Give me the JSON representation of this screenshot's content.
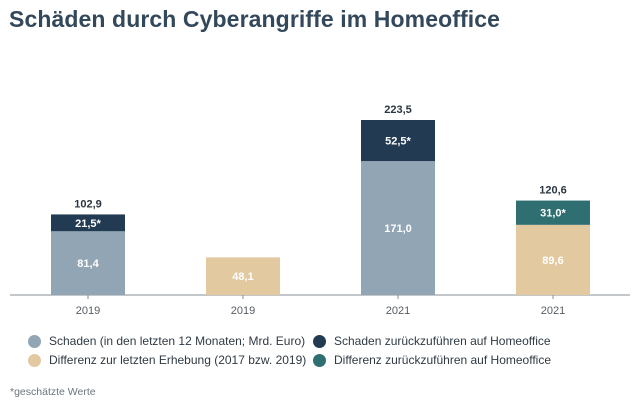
{
  "title": "Schäden durch Cyberangriffe im Homeoffice",
  "footnote": "*geschätzte Werte",
  "colors": {
    "schaden": "#91a5b5",
    "differenz": "#e2c99f",
    "schaden_homeoffice": "#223a52",
    "differenz_homeoffice": "#2f6f72",
    "axis": "#8a8f94",
    "text_dark": "#2b3640",
    "text_light": "#ffffff"
  },
  "chart_data": {
    "type": "bar",
    "stacked": true,
    "categories": [
      "2019",
      "2019",
      "2021",
      "2021"
    ],
    "series": [
      {
        "name": "Schaden (in den letzten 12 Monaten; Mrd. Euro)",
        "color_key": "schaden",
        "values": [
          81.4,
          null,
          171.0,
          null
        ],
        "labels": [
          "81,4",
          "",
          "171,0",
          ""
        ]
      },
      {
        "name": "Differenz zur letzten Erhebung (2017 bzw. 2019)",
        "color_key": "differenz",
        "values": [
          null,
          48.1,
          null,
          89.6
        ],
        "labels": [
          "",
          "48,1",
          "",
          "89,6"
        ]
      },
      {
        "name": "Schaden zurückzuführen auf Homeoffice",
        "color_key": "schaden_homeoffice",
        "values": [
          21.5,
          null,
          52.5,
          null
        ],
        "labels": [
          "21,5*",
          "",
          "52,5*",
          ""
        ]
      },
      {
        "name": "Differenz zurückzuführen auf Homeoffice",
        "color_key": "differenz_homeoffice",
        "values": [
          null,
          null,
          null,
          31.0
        ],
        "labels": [
          "",
          "",
          "",
          "31,0*"
        ]
      }
    ],
    "totals": [
      102.9,
      null,
      223.5,
      120.6
    ],
    "total_labels": [
      "102,9",
      "",
      "223,5",
      "120,6"
    ],
    "ylim": [
      0,
      223.5
    ],
    "grid": false,
    "legend_position": "bottom"
  },
  "legend": [
    {
      "label": "Schaden (in den letzten 12 Monaten; Mrd. Euro)",
      "color_key": "schaden"
    },
    {
      "label": "Schaden zurückzuführen auf Homeoffice",
      "color_key": "schaden_homeoffice"
    },
    {
      "label": "Differenz zur letzten Erhebung (2017 bzw. 2019)",
      "color_key": "differenz"
    },
    {
      "label": "Differenz zurückzuführen auf Homeoffice",
      "color_key": "differenz_homeoffice"
    }
  ]
}
